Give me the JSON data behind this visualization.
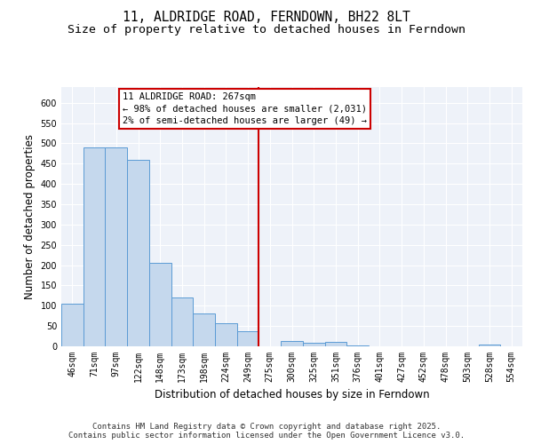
{
  "title_line1": "11, ALDRIDGE ROAD, FERNDOWN, BH22 8LT",
  "title_line2": "Size of property relative to detached houses in Ferndown",
  "xlabel": "Distribution of detached houses by size in Ferndown",
  "ylabel": "Number of detached properties",
  "categories": [
    "46sqm",
    "71sqm",
    "97sqm",
    "122sqm",
    "148sqm",
    "173sqm",
    "198sqm",
    "224sqm",
    "249sqm",
    "275sqm",
    "300sqm",
    "325sqm",
    "351sqm",
    "376sqm",
    "401sqm",
    "427sqm",
    "452sqm",
    "478sqm",
    "503sqm",
    "528sqm",
    "554sqm"
  ],
  "values": [
    105,
    490,
    490,
    460,
    205,
    120,
    80,
    57,
    38,
    0,
    13,
    9,
    11,
    3,
    0,
    0,
    0,
    0,
    0,
    5,
    0
  ],
  "bar_color": "#c5d8ed",
  "bar_edge_color": "#5b9bd5",
  "vline_color": "#cc0000",
  "vline_index": 9,
  "annotation_text": "11 ALDRIDGE ROAD: 267sqm\n← 98% of detached houses are smaller (2,031)\n2% of semi-detached houses are larger (49) →",
  "annotation_box_edge": "#cc0000",
  "ylim": [
    0,
    640
  ],
  "yticks": [
    0,
    50,
    100,
    150,
    200,
    250,
    300,
    350,
    400,
    450,
    500,
    550,
    600
  ],
  "background_color": "#eef2f9",
  "footer_text": "Contains HM Land Registry data © Crown copyright and database right 2025.\nContains public sector information licensed under the Open Government Licence v3.0.",
  "title_fontsize": 10.5,
  "subtitle_fontsize": 9.5,
  "axis_label_fontsize": 8.5,
  "tick_fontsize": 7,
  "footer_fontsize": 6.5,
  "annotation_fontsize": 7.5
}
